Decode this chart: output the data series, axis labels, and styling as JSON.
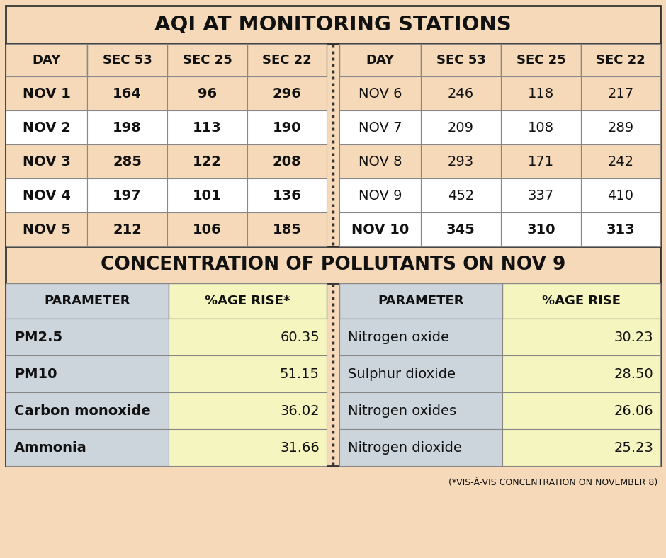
{
  "bg_color": "#f5d9b8",
  "title1": "AQI AT MONITORING STATIONS",
  "title2": "CONCENTRATION OF POLLUTANTS ON NOV 9",
  "footnote": "(*VIS-À-VIS CONCENTRATION ON NOVEMBER 8)",
  "aqi_headers": [
    "DAY",
    "SEC 53",
    "SEC 25",
    "SEC 22"
  ],
  "aqi_left": [
    [
      "NOV 1",
      "164",
      "96",
      "296"
    ],
    [
      "NOV 2",
      "198",
      "113",
      "190"
    ],
    [
      "NOV 3",
      "285",
      "122",
      "208"
    ],
    [
      "NOV 4",
      "197",
      "101",
      "136"
    ],
    [
      "NOV 5",
      "212",
      "106",
      "185"
    ]
  ],
  "aqi_right": [
    [
      "NOV 6",
      "246",
      "118",
      "217"
    ],
    [
      "NOV 7",
      "209",
      "108",
      "289"
    ],
    [
      "NOV 8",
      "293",
      "171",
      "242"
    ],
    [
      "NOV 9",
      "452",
      "337",
      "410"
    ],
    [
      "NOV 10",
      "345",
      "310",
      "313"
    ]
  ],
  "poll_headers_left": [
    "PARAMETER",
    "%AGE RISE*"
  ],
  "poll_headers_right": [
    "PARAMETER",
    "%AGE RISE"
  ],
  "poll_left": [
    [
      "PM2.5",
      "60.35"
    ],
    [
      "PM10",
      "51.15"
    ],
    [
      "Carbon monoxide",
      "36.02"
    ],
    [
      "Ammonia",
      "31.66"
    ]
  ],
  "poll_right": [
    [
      "Nitrogen oxide",
      "30.23"
    ],
    [
      "Sulphur dioxide",
      "28.50"
    ],
    [
      "Nitrogen oxides",
      "26.06"
    ],
    [
      "Nitrogen dioxide",
      "25.23"
    ]
  ],
  "aqi_row_colors": [
    "#f5d9b8",
    "#ffffff",
    "#f5d9b8",
    "#ffffff",
    "#f5d9b8"
  ],
  "aqi_right_row_colors": [
    "#f5d9b8",
    "#ffffff",
    "#f5d9b8",
    "#ffffff",
    "#ffffff"
  ],
  "poll_param_bg": "#cdd5dc",
  "poll_value_bg": "#f5f5c0",
  "line_color": "#888888",
  "border_color": "#333333",
  "title_fontsize": 21,
  "title2_fontsize": 19,
  "header_fontsize": 13,
  "data_fontsize": 14,
  "footnote_fontsize": 9
}
